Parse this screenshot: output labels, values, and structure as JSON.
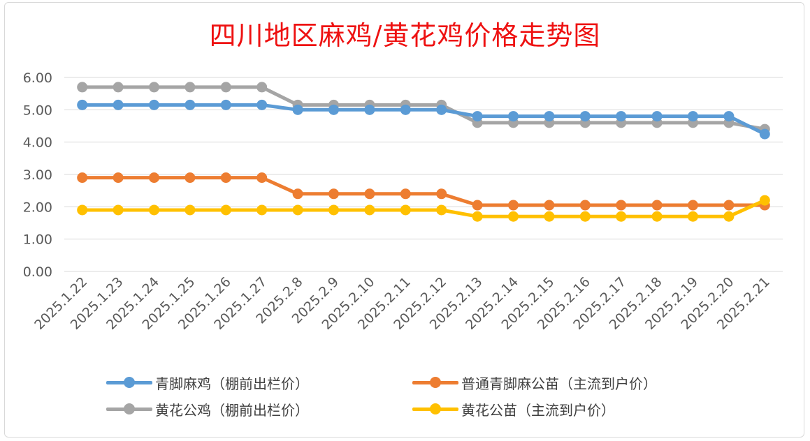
{
  "chart_data": {
    "type": "line",
    "title": "四川地区麻鸡/黄花鸡价格走势图",
    "categories": [
      "2025.1.22",
      "2025.1.23",
      "2025.1.24",
      "2025.1.25",
      "2025.1.26",
      "2025.1.27",
      "2025.2.8",
      "2025.2.9",
      "2025.2.10",
      "2025.2.11",
      "2025.2.12",
      "2025.2.13",
      "2025.2.14",
      "2025.2.15",
      "2025.2.16",
      "2025.2.17",
      "2025.2.18",
      "2025.2.19",
      "2025.2.20",
      "2025.2.21"
    ],
    "ylim": [
      0,
      6
    ],
    "yticks": [
      "0.00",
      "1.00",
      "2.00",
      "3.00",
      "4.00",
      "5.00",
      "6.00"
    ],
    "grid": true,
    "legend_position": "bottom",
    "series": [
      {
        "name": "青脚麻鸡（棚前出栏价）",
        "color": "#5b9bd5",
        "values": [
          5.15,
          5.15,
          5.15,
          5.15,
          5.15,
          5.15,
          5.0,
          5.0,
          5.0,
          5.0,
          5.0,
          4.8,
          4.8,
          4.8,
          4.8,
          4.8,
          4.8,
          4.8,
          4.8,
          4.25
        ]
      },
      {
        "name": "普通青脚麻公苗（主流到户价）",
        "color": "#ed7d31",
        "values": [
          2.9,
          2.9,
          2.9,
          2.9,
          2.9,
          2.9,
          2.4,
          2.4,
          2.4,
          2.4,
          2.4,
          2.05,
          2.05,
          2.05,
          2.05,
          2.05,
          2.05,
          2.05,
          2.05,
          2.05
        ]
      },
      {
        "name": "黄花公鸡（棚前出栏价）",
        "color": "#a5a5a5",
        "values": [
          5.7,
          5.7,
          5.7,
          5.7,
          5.7,
          5.7,
          5.15,
          5.15,
          5.15,
          5.15,
          5.15,
          4.6,
          4.6,
          4.6,
          4.6,
          4.6,
          4.6,
          4.6,
          4.6,
          4.4
        ]
      },
      {
        "name": "黄花公苗（主流到户价）",
        "color": "#ffc000",
        "values": [
          1.9,
          1.9,
          1.9,
          1.9,
          1.9,
          1.9,
          1.9,
          1.9,
          1.9,
          1.9,
          1.9,
          1.7,
          1.7,
          1.7,
          1.7,
          1.7,
          1.7,
          1.7,
          1.7,
          2.2
        ]
      }
    ]
  }
}
